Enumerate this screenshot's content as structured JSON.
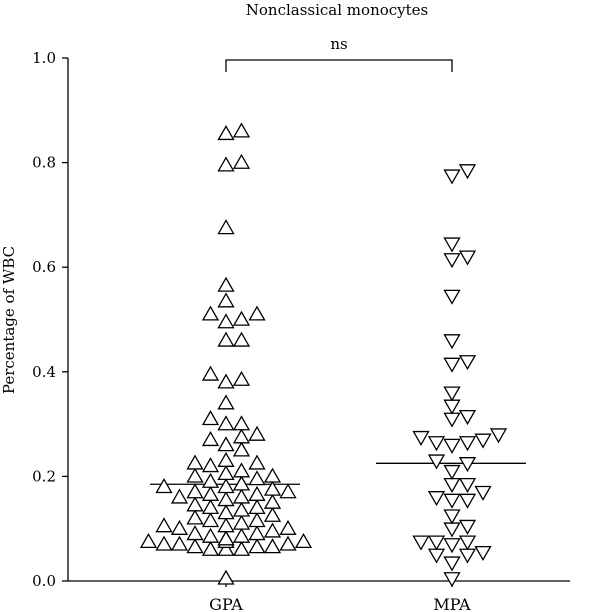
{
  "chart_data": {
    "type": "scatter",
    "title": "Nonclassical monocytes",
    "ylabel": "Percentage of WBC",
    "xlabel": "",
    "ylim": [
      0,
      1.0
    ],
    "yticks": [
      "0.0",
      "0.2",
      "0.4",
      "0.6",
      "0.8",
      "1.0"
    ],
    "categories": [
      "GPA",
      "MPA"
    ],
    "significance": {
      "label": "ns",
      "between": [
        "GPA",
        "MPA"
      ]
    },
    "series": [
      {
        "name": "GPA",
        "marker": "triangle-up",
        "median": 0.185,
        "values": [
          0.855,
          0.86,
          0.8,
          0.795,
          0.675,
          0.565,
          0.535,
          0.51,
          0.51,
          0.5,
          0.495,
          0.46,
          0.46,
          0.395,
          0.385,
          0.38,
          0.34,
          0.31,
          0.3,
          0.3,
          0.28,
          0.275,
          0.27,
          0.26,
          0.25,
          0.23,
          0.225,
          0.225,
          0.22,
          0.21,
          0.205,
          0.2,
          0.2,
          0.195,
          0.19,
          0.185,
          0.18,
          0.18,
          0.175,
          0.17,
          0.17,
          0.165,
          0.165,
          0.16,
          0.16,
          0.155,
          0.15,
          0.145,
          0.14,
          0.14,
          0.135,
          0.13,
          0.125,
          0.12,
          0.115,
          0.115,
          0.11,
          0.105,
          0.105,
          0.1,
          0.1,
          0.095,
          0.09,
          0.09,
          0.085,
          0.085,
          0.08,
          0.08,
          0.075,
          0.075,
          0.075,
          0.07,
          0.07,
          0.07,
          0.065,
          0.065,
          0.065,
          0.06,
          0.06,
          0.06,
          0.005
        ]
      },
      {
        "name": "MPA",
        "marker": "triangle-down",
        "median": 0.225,
        "values": [
          0.785,
          0.775,
          0.645,
          0.62,
          0.615,
          0.545,
          0.46,
          0.42,
          0.415,
          0.36,
          0.335,
          0.315,
          0.31,
          0.28,
          0.275,
          0.27,
          0.265,
          0.265,
          0.26,
          0.23,
          0.225,
          0.21,
          0.185,
          0.185,
          0.17,
          0.16,
          0.155,
          0.155,
          0.125,
          0.105,
          0.1,
          0.075,
          0.075,
          0.075,
          0.07,
          0.055,
          0.05,
          0.05,
          0.035,
          0.005
        ]
      }
    ]
  }
}
